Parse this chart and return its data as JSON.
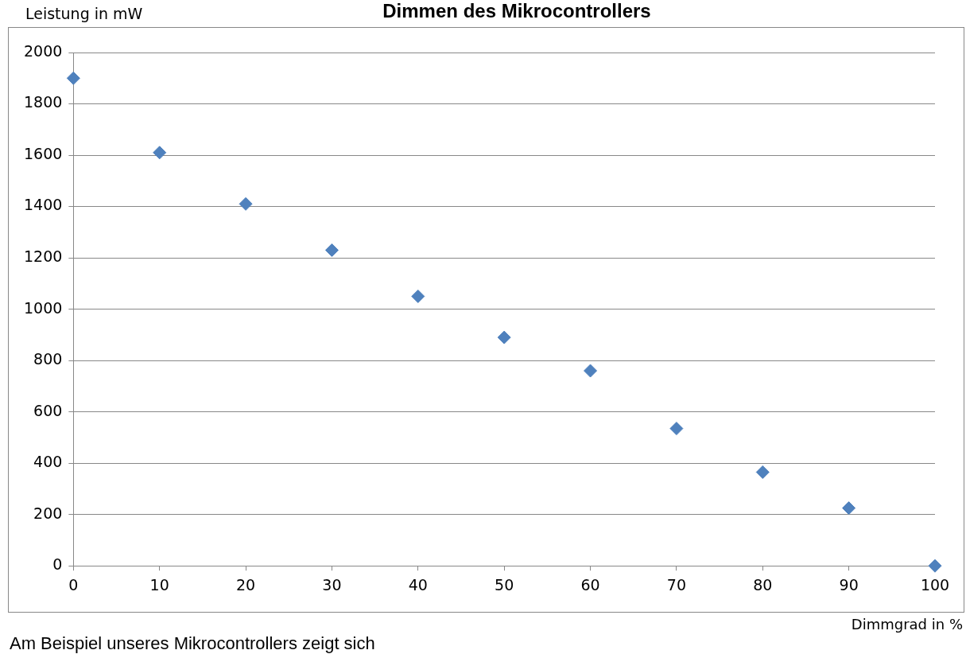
{
  "chart_data": {
    "type": "scatter",
    "title": "Dimmen des Mikrocontrollers",
    "xlabel": "Dimmgrad in %",
    "ylabel": "Leistung in mW",
    "annotations": [
      "Am Beispiel unseres Mikrocontrollers zeigt sich"
    ],
    "x": [
      0,
      10,
      20,
      30,
      40,
      50,
      60,
      70,
      80,
      90,
      100
    ],
    "series": [
      {
        "color": "#4f81bd",
        "values": [
          1900,
          1610,
          1410,
          1230,
          1050,
          890,
          760,
          535,
          365,
          225,
          0
        ]
      }
    ],
    "xlim": [
      0,
      100
    ],
    "xticks": [
      0,
      10,
      20,
      30,
      40,
      50,
      60,
      70,
      80,
      90,
      100
    ],
    "ylim": [
      0,
      2000
    ],
    "yticks": [
      0,
      200,
      400,
      600,
      800,
      1000,
      1200,
      1400,
      1600,
      1800,
      2000
    ],
    "grid": "y",
    "legend": false,
    "marker": "diamond"
  }
}
